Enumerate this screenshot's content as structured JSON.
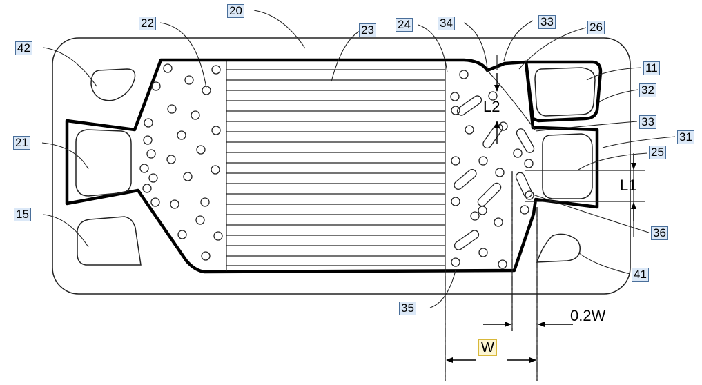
{
  "callouts": {
    "c20": "20",
    "c22": "22",
    "c23": "23",
    "c24": "24",
    "c34": "34",
    "c33_top": "33",
    "c26": "26",
    "c42": "42",
    "c11": "11",
    "c32": "32",
    "c33_right": "33",
    "c21": "21",
    "c31": "31",
    "c25": "25",
    "c15": "15",
    "c36": "36",
    "c41": "41",
    "c35": "35",
    "cW": "W"
  },
  "dimensions": {
    "l1": "L1",
    "l2": "L2",
    "w02": "0.2W"
  },
  "colors": {
    "line": "#000000",
    "callout_fill": "#dbe8f7",
    "callout_border": "#4a6f9a",
    "highlight_fill": "#fdf6d2"
  }
}
